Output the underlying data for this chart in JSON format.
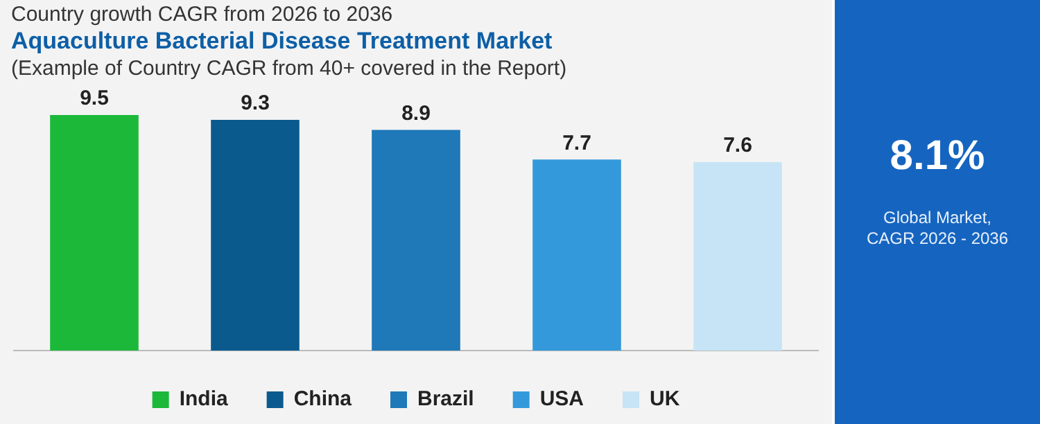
{
  "chart_data": [
    {
      "type": "bar",
      "subtitle": "Country growth CAGR from 2026 to 2036",
      "title": "Aquaculture Bacterial Disease Treatment Market",
      "annotations": [
        "(Example of Country CAGR from 40+ covered in the Report)"
      ],
      "categories": [
        null,
        null,
        null,
        null,
        null
      ],
      "series": [
        {
          "name": "India",
          "color": "#1cb83a",
          "values": [
            9.5,
            null,
            null,
            null,
            null
          ]
        },
        {
          "name": "China",
          "color": "#0b5a8e",
          "values": [
            null,
            9.3,
            null,
            null,
            null
          ]
        },
        {
          "name": "Brazil",
          "color": "#1f78b8",
          "values": [
            null,
            null,
            8.9,
            null,
            null
          ]
        },
        {
          "name": "USA",
          "color": "#3499db",
          "values": [
            null,
            null,
            null,
            7.7,
            null
          ]
        },
        {
          "name": "UK",
          "color": "#c6e4f6",
          "values": [
            null,
            null,
            null,
            null,
            7.6
          ]
        }
      ],
      "stacked": true,
      "tick_labels": false,
      "data_labels": true,
      "legend": "bottom",
      "grid": false
    },
    {
      "type": "other",
      "title": "8.1%",
      "annotations": [
        "Global Market,",
        "CAGR 2026 - 2036"
      ]
    }
  ]
}
